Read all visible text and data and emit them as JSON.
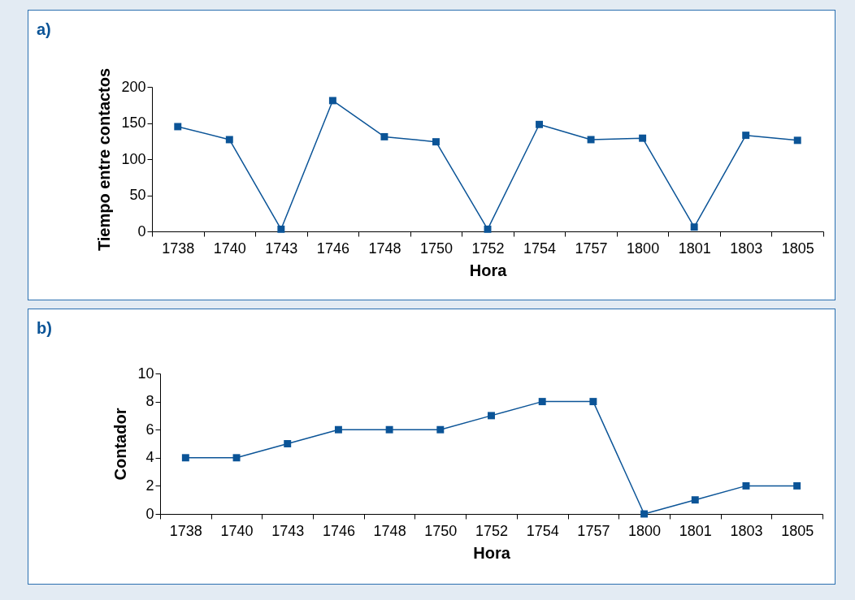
{
  "chart_data": [
    {
      "type": "line",
      "title": "a)",
      "xlabel": "Hora",
      "ylabel": "Tiempo entre contactos",
      "categories": [
        "1738",
        "1740",
        "1743",
        "1746",
        "1748",
        "1750",
        "1752",
        "1754",
        "1757",
        "1800",
        "1801",
        "1803",
        "1805"
      ],
      "series": [
        {
          "color": "#0b5497",
          "values": [
            145,
            127,
            3,
            181,
            131,
            124,
            3,
            148,
            127,
            129,
            6,
            133,
            126
          ]
        }
      ],
      "ylim": [
        0,
        200
      ],
      "yticks": [
        0,
        50,
        100,
        150,
        200
      ],
      "grid": false,
      "marker": "square",
      "line_style": "solid"
    },
    {
      "type": "line",
      "title": "b)",
      "xlabel": "Hora",
      "ylabel": "Contador",
      "categories": [
        "1738",
        "1740",
        "1743",
        "1746",
        "1748",
        "1750",
        "1752",
        "1754",
        "1757",
        "1800",
        "1801",
        "1803",
        "1805"
      ],
      "series": [
        {
          "color": "#0b5497",
          "values": [
            4,
            4,
            5,
            6,
            6,
            6,
            7,
            8,
            8,
            0,
            1,
            2,
            2
          ]
        }
      ],
      "ylim": [
        0,
        10
      ],
      "yticks": [
        0,
        2,
        4,
        6,
        8,
        10
      ],
      "grid": false,
      "marker": "square",
      "line_style": "solid"
    }
  ]
}
